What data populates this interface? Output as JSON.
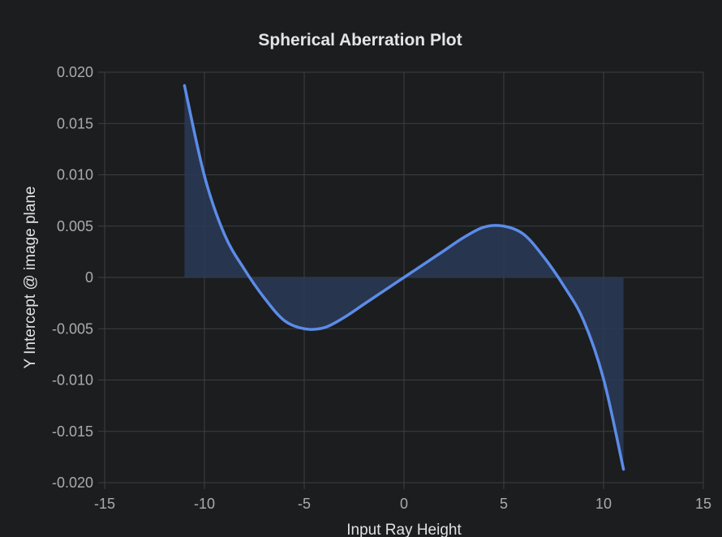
{
  "chart_data": {
    "type": "area",
    "title": "Spherical Aberration Plot",
    "xlabel": "Input Ray Height",
    "ylabel": "Y Intercept @ image plane",
    "xlim": [
      -15,
      15
    ],
    "ylim": [
      -0.02,
      0.02
    ],
    "x_ticks": [
      -15,
      -10,
      -5,
      0,
      5,
      10,
      15
    ],
    "y_ticks": [
      0.02,
      0.015,
      0.01,
      0.005,
      0,
      -0.005,
      -0.01,
      -0.015,
      -0.02
    ],
    "x_tick_labels": [
      "-15",
      "-10",
      "-5",
      "0",
      "5",
      "10",
      "15"
    ],
    "y_tick_labels": [
      "0.020",
      "0.015",
      "0.010",
      "0.005",
      "0",
      "-0.005",
      "-0.010",
      "-0.015",
      "-0.020"
    ],
    "grid": true,
    "legend": "none",
    "line_color": "#5b8ce8",
    "fill_color": "#2a3a57",
    "series": [
      {
        "x": [
          -11,
          -10,
          -9,
          -8,
          -7,
          -6,
          -5,
          -4,
          -3,
          -2,
          -1,
          0,
          1,
          2,
          3,
          4,
          5,
          6,
          7,
          8,
          9,
          10,
          11
        ],
        "values": [
          0.0187,
          0.0099,
          0.0042,
          0.0008,
          -0.002,
          -0.0042,
          -0.005,
          -0.0049,
          -0.0039,
          -0.0026,
          -0.0013,
          0,
          0.0013,
          0.0026,
          0.0039,
          0.0049,
          0.005,
          0.0042,
          0.002,
          -0.0008,
          -0.0042,
          -0.0099,
          -0.0187
        ]
      }
    ]
  }
}
